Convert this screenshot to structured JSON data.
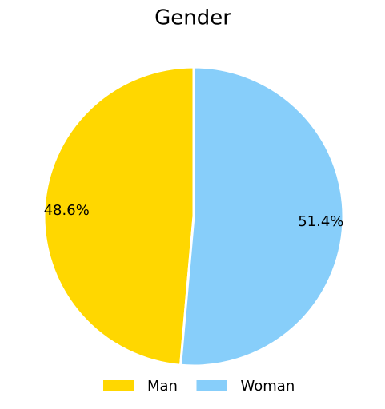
{
  "chart_data": {
    "type": "pie",
    "title": "Gender",
    "categories": [
      "Man",
      "Woman"
    ],
    "values": [
      48.6,
      51.4
    ],
    "value_labels": [
      "48.6%",
      "51.4%"
    ],
    "colors": [
      "#FFD700",
      "#87CEFA"
    ],
    "start_angle": 90,
    "counterclockwise": true,
    "legend": "lower center"
  }
}
